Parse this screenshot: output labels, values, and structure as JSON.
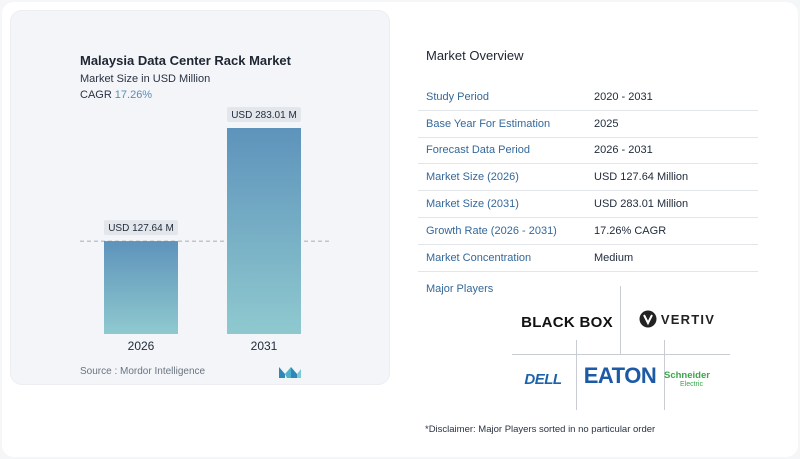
{
  "chart": {
    "title": "Malaysia Data Center Rack Market",
    "subtitle": "Market Size in USD Million",
    "cagr_label": "CAGR",
    "cagr_value": "17.26%",
    "source": "Source :  Mordor Intelligence"
  },
  "chart_data": {
    "type": "bar",
    "title": "Malaysia Data Center Rack Market",
    "ylabel": "Market Size in USD Million",
    "categories": [
      "2026",
      "2031"
    ],
    "values": [
      127.64,
      283.01
    ],
    "data_labels": [
      "USD 127.64 M",
      "USD 283.01 M"
    ],
    "ylim": [
      0,
      283.01
    ],
    "grid": false,
    "reference_line": "dashed at 2026 value",
    "colors": {
      "bar_top": "#5e93bb",
      "bar_bottom": "#8fc9cf"
    }
  },
  "overview": {
    "title": "Market Overview",
    "rows": [
      {
        "label": "Study Period",
        "value": "2020 - 2031"
      },
      {
        "label": "Base Year For Estimation",
        "value": "2025"
      },
      {
        "label": "Forecast Data Period",
        "value": "2026 - 2031"
      },
      {
        "label": "Market Size (2026)",
        "value": "USD 127.64 Million"
      },
      {
        "label": "Market Size (2031)",
        "value": "USD 283.01 Million"
      },
      {
        "label": "Growth Rate (2026 - 2031)",
        "value": "17.26% CAGR"
      },
      {
        "label": "Market Concentration",
        "value": "Medium"
      }
    ]
  },
  "players": {
    "title": "Major Players",
    "logos": {
      "blackbox": "BLACK BOX",
      "vertiv": "VERTIV",
      "dell": "DELL",
      "eaton": "EATON",
      "schneider_1": "Schneider",
      "schneider_2": "Electric"
    }
  },
  "disclaimer": "*Disclaimer: Major Players sorted in no particular order"
}
